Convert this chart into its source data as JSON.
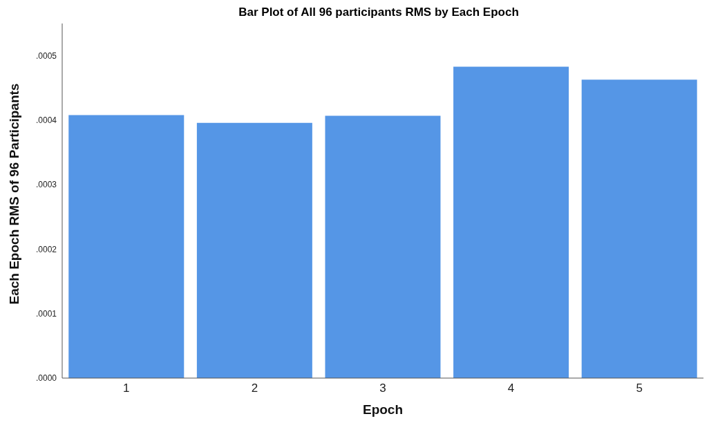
{
  "chart_data": {
    "type": "bar",
    "title": "Bar Plot of All 96 participants RMS by Each Epoch",
    "xlabel": "Epoch",
    "ylabel": "Each Epoch RMS of 96 Participants",
    "categories": [
      "1",
      "2",
      "3",
      "4",
      "5"
    ],
    "values": [
      0.000408,
      0.000396,
      0.000407,
      0.000483,
      0.000463
    ],
    "color": "#5596e6",
    "ylim": [
      0,
      0.00055
    ],
    "yticks": [
      {
        "value": 0,
        "label": ".0000"
      },
      {
        "value": 0.0001,
        "label": ".0001"
      },
      {
        "value": 0.0002,
        "label": ".0002"
      },
      {
        "value": 0.0003,
        "label": ".0003"
      },
      {
        "value": 0.0004,
        "label": ".0004"
      },
      {
        "value": 0.0005,
        "label": ".0005"
      }
    ],
    "grid": false,
    "legend": false
  }
}
